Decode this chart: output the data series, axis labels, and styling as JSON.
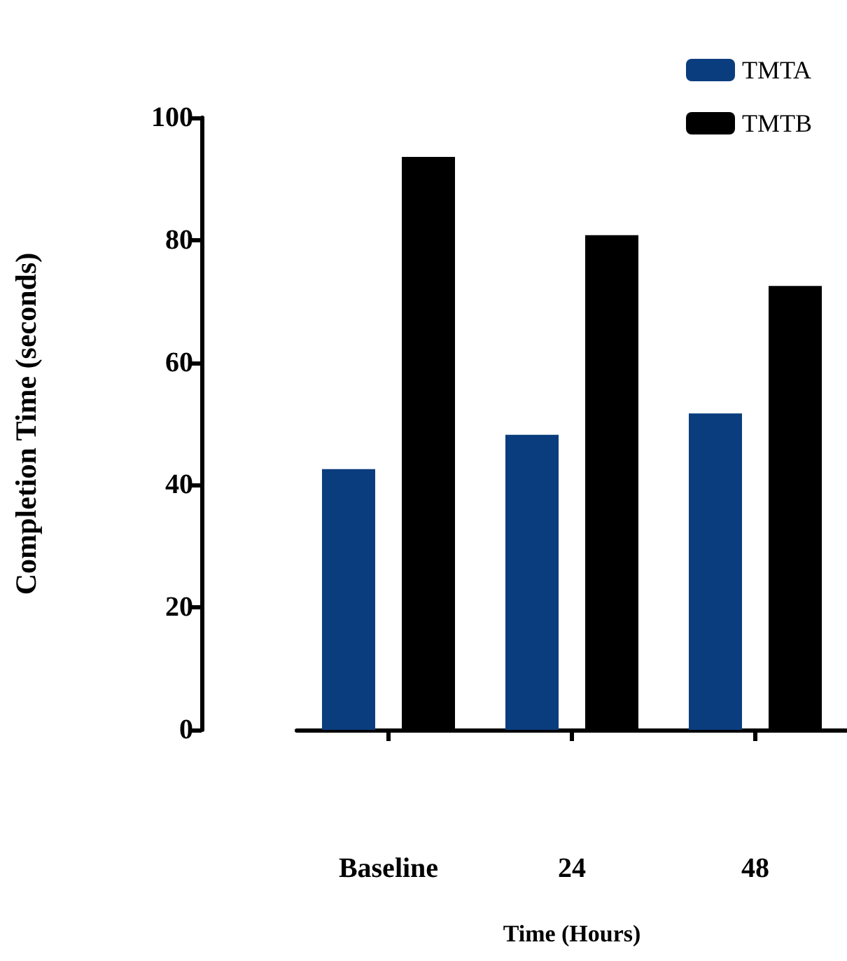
{
  "chart_data": {
    "type": "bar",
    "xlabel": "Time (Hours)",
    "ylabel": "Completion Time (seconds)",
    "categories": [
      "Baseline",
      "24",
      "48"
    ],
    "series": [
      {
        "name": "TMTA",
        "color": "#0a3d7e",
        "values": [
          42.6,
          48.2,
          51.7
        ]
      },
      {
        "name": "TMTB",
        "color": "#000000",
        "values": [
          93.6,
          80.8,
          72.5
        ]
      }
    ],
    "ylim": [
      0,
      100
    ],
    "yticks": [
      0,
      20,
      40,
      60,
      80,
      100
    ],
    "grid": false,
    "legend": "top right"
  }
}
